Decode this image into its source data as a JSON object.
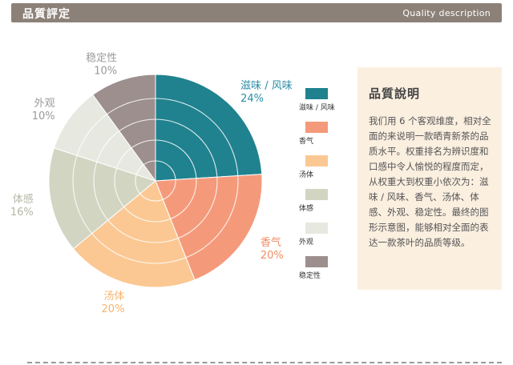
{
  "header": {
    "title": "品質評定",
    "subtitle": "Quality description"
  },
  "chart_data": {
    "type": "pie",
    "title": "",
    "categories": [
      "滋味 / 风味",
      "香气",
      "汤体",
      "体感",
      "外观",
      "稳定性"
    ],
    "values": [
      24,
      20,
      20,
      16,
      10,
      10
    ],
    "value_labels": [
      "24%",
      "20%",
      "20%",
      "16%",
      "10%",
      "10%"
    ],
    "colors": [
      "#20828f",
      "#f49a7a",
      "#fbc893",
      "#d3d5c3",
      "#e7e8df",
      "#9c8f8d"
    ],
    "label_colors": [
      "#2a8ea6",
      "#f28c66",
      "#f6b46c",
      "#b5b6a6",
      "#9a9a9a",
      "#9a9a9a"
    ],
    "legend_position": "right",
    "legend": [
      "滋味 / 风味",
      "香气",
      "汤体",
      "体感",
      "外观",
      "稳定性"
    ],
    "grid_rings": true
  },
  "description": {
    "title": "品質說明",
    "body": "我们用 6 个客观维度，相对全面的来说明一款晒青新茶的品质水平。权重排名为辨识度和口感中令人愉悦的程度而定，从权重大到权重小依次为：滋味 / 风味、香气、汤体、体感、外观、稳定性。最终的图形示意图，能够相对全面的表达一款茶叶的品质等级。"
  }
}
